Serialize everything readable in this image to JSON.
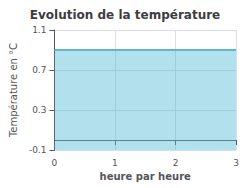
{
  "chart_data": {
    "type": "area",
    "title": "Evolution de la température",
    "xlabel": "heure par heure",
    "ylabel": "Température en °C",
    "x": [
      0,
      1,
      2,
      3
    ],
    "values": [
      0.9,
      0.9,
      0.9,
      0.9
    ],
    "color": "#55bbd4",
    "xlim": [
      0,
      3
    ],
    "xticks": [
      0,
      1,
      2,
      3
    ],
    "ylim": [
      -0.1,
      1.1
    ],
    "yticks": [
      -0.1,
      0.3,
      0.7,
      1.1
    ],
    "grid": true
  }
}
